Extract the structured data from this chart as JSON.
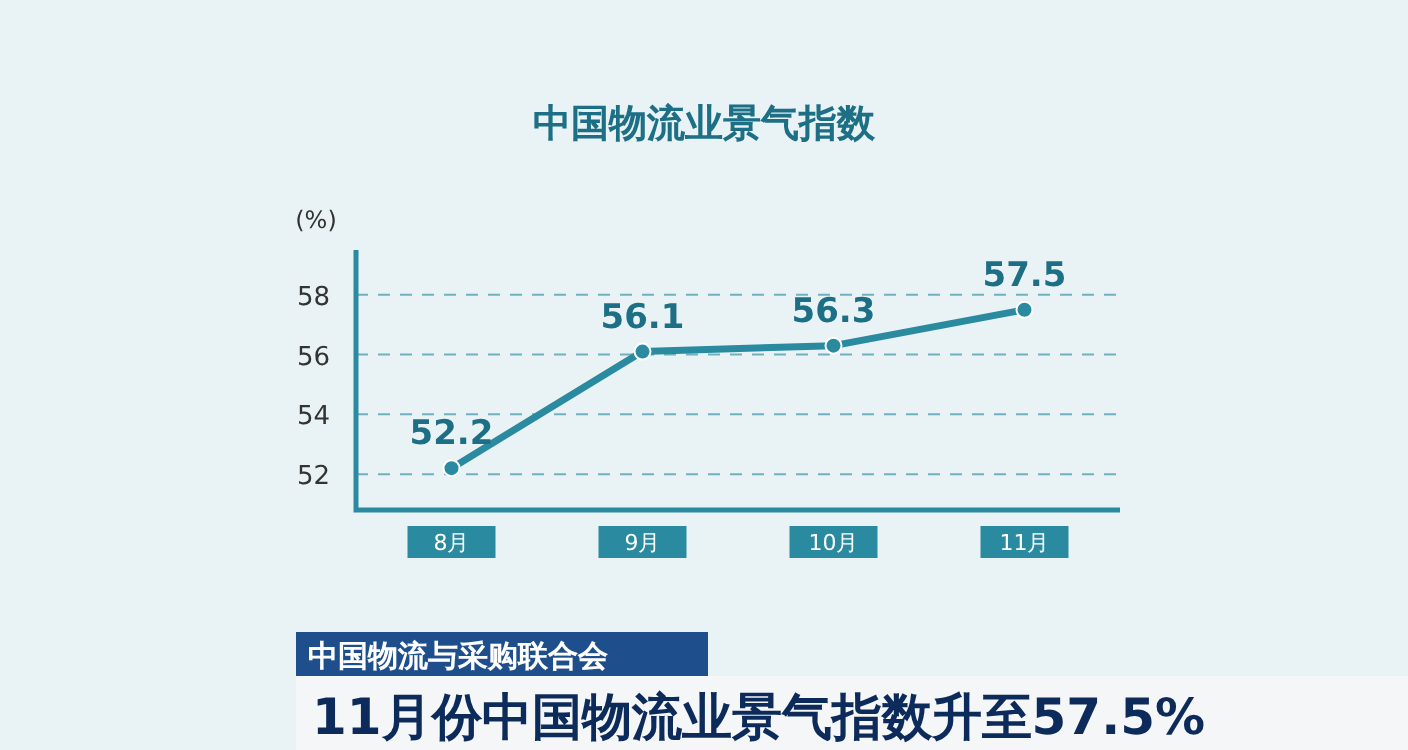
{
  "chart_data": {
    "type": "line",
    "title": "中国物流业景气指数",
    "ylabel": "(%)",
    "categories": [
      "8月",
      "9月",
      "10月",
      "11月"
    ],
    "values": [
      52.2,
      56.1,
      56.3,
      57.5
    ],
    "color": "#2a8aa0",
    "ylim": [
      50.8,
      59.5
    ],
    "yticks": [
      52,
      54,
      56,
      58
    ],
    "grid": "y",
    "data_labels": true,
    "marker": "circle",
    "line_style": "solid",
    "annotations": [
      "中国物流与采购联合会",
      "11月份中国物流业景气指数升至57.5%"
    ]
  }
}
